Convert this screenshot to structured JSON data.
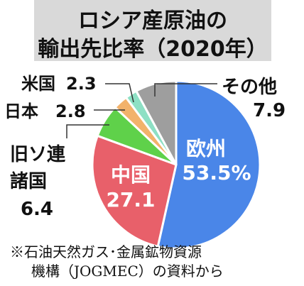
{
  "title_line1": "ロシア産原油の",
  "title_line2": "輸出先比率（2020年）",
  "chart_data": {
    "type": "pie",
    "title": "ロシア産原油の輸出先比率（2020年）",
    "unit": "%",
    "slices": [
      {
        "name": "欧州",
        "value": 53.5,
        "value_label": "53.5%",
        "color": "#4a86e8"
      },
      {
        "name": "中国",
        "value": 27.1,
        "value_label": "27.1",
        "color": "#e8606a"
      },
      {
        "name": "旧ソ連諸国",
        "name_lines": [
          "旧ソ連",
          "諸国"
        ],
        "value": 6.4,
        "value_label": "6.4",
        "color": "#5fd14a"
      },
      {
        "name": "日本",
        "value": 2.8,
        "value_label": "2.8",
        "color": "#f2b26b"
      },
      {
        "name": "米国",
        "value": 2.3,
        "value_label": "2.3",
        "color": "#8de0c4"
      },
      {
        "name": "その他",
        "value": 7.9,
        "value_label": "7.9",
        "color": "#9e9e9e"
      }
    ]
  },
  "source_line1": "※石油天然ガス･金属鉱物資源",
  "source_line2": "機構（JOGMEC）の資料から"
}
